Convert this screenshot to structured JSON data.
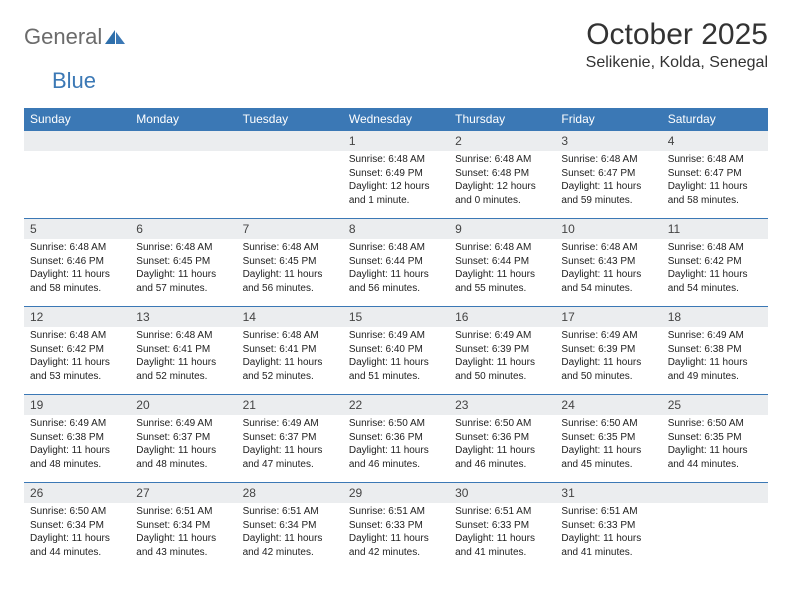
{
  "brand": {
    "part1": "General",
    "part2": "Blue"
  },
  "title": "October 2025",
  "location": "Selikenie, Kolda, Senegal",
  "colors": {
    "header_bg": "#3b78b5",
    "header_text": "#ffffff",
    "daynum_bg": "#ebedef",
    "border": "#3b78b5",
    "logo_gray": "#6b6b6b",
    "logo_blue": "#3b78b5"
  },
  "weekdays": [
    "Sunday",
    "Monday",
    "Tuesday",
    "Wednesday",
    "Thursday",
    "Friday",
    "Saturday"
  ],
  "weeks": [
    [
      null,
      null,
      null,
      {
        "n": "1",
        "sr": "Sunrise: 6:48 AM",
        "ss": "Sunset: 6:49 PM",
        "dl": "Daylight: 12 hours and 1 minute."
      },
      {
        "n": "2",
        "sr": "Sunrise: 6:48 AM",
        "ss": "Sunset: 6:48 PM",
        "dl": "Daylight: 12 hours and 0 minutes."
      },
      {
        "n": "3",
        "sr": "Sunrise: 6:48 AM",
        "ss": "Sunset: 6:47 PM",
        "dl": "Daylight: 11 hours and 59 minutes."
      },
      {
        "n": "4",
        "sr": "Sunrise: 6:48 AM",
        "ss": "Sunset: 6:47 PM",
        "dl": "Daylight: 11 hours and 58 minutes."
      }
    ],
    [
      {
        "n": "5",
        "sr": "Sunrise: 6:48 AM",
        "ss": "Sunset: 6:46 PM",
        "dl": "Daylight: 11 hours and 58 minutes."
      },
      {
        "n": "6",
        "sr": "Sunrise: 6:48 AM",
        "ss": "Sunset: 6:45 PM",
        "dl": "Daylight: 11 hours and 57 minutes."
      },
      {
        "n": "7",
        "sr": "Sunrise: 6:48 AM",
        "ss": "Sunset: 6:45 PM",
        "dl": "Daylight: 11 hours and 56 minutes."
      },
      {
        "n": "8",
        "sr": "Sunrise: 6:48 AM",
        "ss": "Sunset: 6:44 PM",
        "dl": "Daylight: 11 hours and 56 minutes."
      },
      {
        "n": "9",
        "sr": "Sunrise: 6:48 AM",
        "ss": "Sunset: 6:44 PM",
        "dl": "Daylight: 11 hours and 55 minutes."
      },
      {
        "n": "10",
        "sr": "Sunrise: 6:48 AM",
        "ss": "Sunset: 6:43 PM",
        "dl": "Daylight: 11 hours and 54 minutes."
      },
      {
        "n": "11",
        "sr": "Sunrise: 6:48 AM",
        "ss": "Sunset: 6:42 PM",
        "dl": "Daylight: 11 hours and 54 minutes."
      }
    ],
    [
      {
        "n": "12",
        "sr": "Sunrise: 6:48 AM",
        "ss": "Sunset: 6:42 PM",
        "dl": "Daylight: 11 hours and 53 minutes."
      },
      {
        "n": "13",
        "sr": "Sunrise: 6:48 AM",
        "ss": "Sunset: 6:41 PM",
        "dl": "Daylight: 11 hours and 52 minutes."
      },
      {
        "n": "14",
        "sr": "Sunrise: 6:48 AM",
        "ss": "Sunset: 6:41 PM",
        "dl": "Daylight: 11 hours and 52 minutes."
      },
      {
        "n": "15",
        "sr": "Sunrise: 6:49 AM",
        "ss": "Sunset: 6:40 PM",
        "dl": "Daylight: 11 hours and 51 minutes."
      },
      {
        "n": "16",
        "sr": "Sunrise: 6:49 AM",
        "ss": "Sunset: 6:39 PM",
        "dl": "Daylight: 11 hours and 50 minutes."
      },
      {
        "n": "17",
        "sr": "Sunrise: 6:49 AM",
        "ss": "Sunset: 6:39 PM",
        "dl": "Daylight: 11 hours and 50 minutes."
      },
      {
        "n": "18",
        "sr": "Sunrise: 6:49 AM",
        "ss": "Sunset: 6:38 PM",
        "dl": "Daylight: 11 hours and 49 minutes."
      }
    ],
    [
      {
        "n": "19",
        "sr": "Sunrise: 6:49 AM",
        "ss": "Sunset: 6:38 PM",
        "dl": "Daylight: 11 hours and 48 minutes."
      },
      {
        "n": "20",
        "sr": "Sunrise: 6:49 AM",
        "ss": "Sunset: 6:37 PM",
        "dl": "Daylight: 11 hours and 48 minutes."
      },
      {
        "n": "21",
        "sr": "Sunrise: 6:49 AM",
        "ss": "Sunset: 6:37 PM",
        "dl": "Daylight: 11 hours and 47 minutes."
      },
      {
        "n": "22",
        "sr": "Sunrise: 6:50 AM",
        "ss": "Sunset: 6:36 PM",
        "dl": "Daylight: 11 hours and 46 minutes."
      },
      {
        "n": "23",
        "sr": "Sunrise: 6:50 AM",
        "ss": "Sunset: 6:36 PM",
        "dl": "Daylight: 11 hours and 46 minutes."
      },
      {
        "n": "24",
        "sr": "Sunrise: 6:50 AM",
        "ss": "Sunset: 6:35 PM",
        "dl": "Daylight: 11 hours and 45 minutes."
      },
      {
        "n": "25",
        "sr": "Sunrise: 6:50 AM",
        "ss": "Sunset: 6:35 PM",
        "dl": "Daylight: 11 hours and 44 minutes."
      }
    ],
    [
      {
        "n": "26",
        "sr": "Sunrise: 6:50 AM",
        "ss": "Sunset: 6:34 PM",
        "dl": "Daylight: 11 hours and 44 minutes."
      },
      {
        "n": "27",
        "sr": "Sunrise: 6:51 AM",
        "ss": "Sunset: 6:34 PM",
        "dl": "Daylight: 11 hours and 43 minutes."
      },
      {
        "n": "28",
        "sr": "Sunrise: 6:51 AM",
        "ss": "Sunset: 6:34 PM",
        "dl": "Daylight: 11 hours and 42 minutes."
      },
      {
        "n": "29",
        "sr": "Sunrise: 6:51 AM",
        "ss": "Sunset: 6:33 PM",
        "dl": "Daylight: 11 hours and 42 minutes."
      },
      {
        "n": "30",
        "sr": "Sunrise: 6:51 AM",
        "ss": "Sunset: 6:33 PM",
        "dl": "Daylight: 11 hours and 41 minutes."
      },
      {
        "n": "31",
        "sr": "Sunrise: 6:51 AM",
        "ss": "Sunset: 6:33 PM",
        "dl": "Daylight: 11 hours and 41 minutes."
      },
      null
    ]
  ]
}
